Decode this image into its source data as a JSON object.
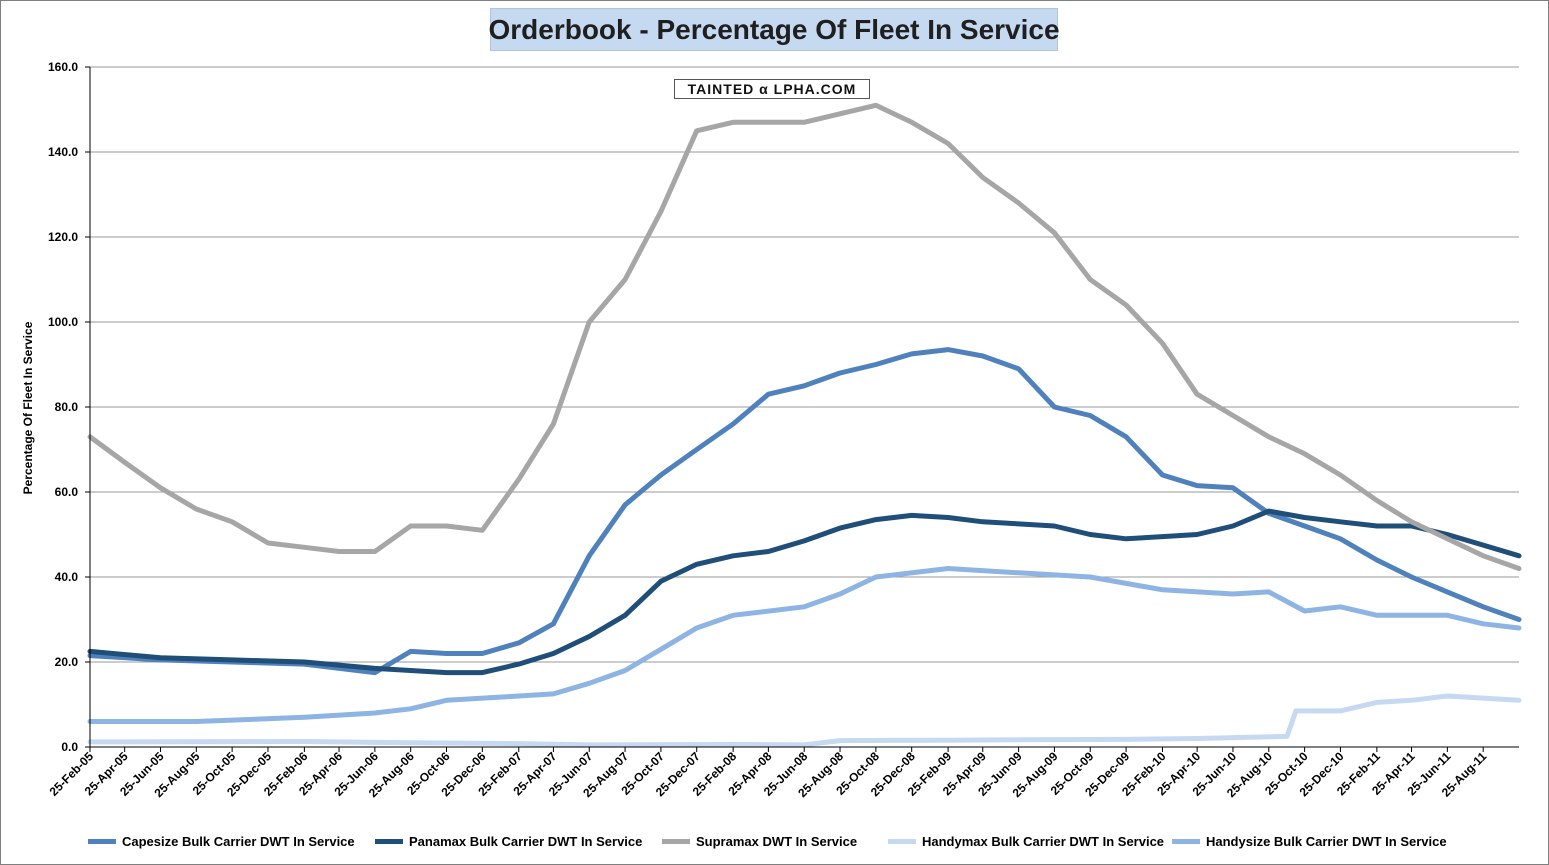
{
  "chart_data": {
    "type": "line",
    "title": "Orderbook - Percentage Of Fleet In Service",
    "ylabel": "Percentage Of Fleet In Service",
    "xlabel": "",
    "ylim": [
      0,
      160
    ],
    "y_ticks": [
      "0.0",
      "20.0",
      "40.0",
      "60.0",
      "80.0",
      "100.0",
      "120.0",
      "140.0",
      "160.0"
    ],
    "grid": true,
    "legend_position": "bottom",
    "x_start": "2005-02-25",
    "x_end": "2011-10-25",
    "x_ticks": [
      "25-Feb-05",
      "25-Apr-05",
      "25-Jun-05",
      "25-Aug-05",
      "25-Oct-05",
      "25-Dec-05",
      "25-Feb-06",
      "25-Apr-06",
      "25-Jun-06",
      "25-Aug-06",
      "25-Oct-06",
      "25-Dec-06",
      "25-Feb-07",
      "25-Apr-07",
      "25-Jun-07",
      "25-Aug-07",
      "25-Oct-07",
      "25-Dec-07",
      "25-Feb-08",
      "25-Apr-08",
      "25-Jun-08",
      "25-Aug-08",
      "25-Oct-08",
      "25-Dec-08",
      "25-Feb-09",
      "25-Apr-09",
      "25-Jun-09",
      "25-Aug-09",
      "25-Oct-09",
      "25-Dec-09",
      "25-Feb-10",
      "25-Apr-10",
      "25-Jun-10",
      "25-Aug-10",
      "25-Oct-10",
      "25-Dec-10",
      "25-Feb-11",
      "25-Apr-11",
      "25-Jun-11",
      "25-Aug-11"
    ],
    "series": [
      {
        "name": "Capesize Bulk Carrier DWT In Service",
        "color": "#4f81bd",
        "x": [
          "2005-02-25",
          "2005-06-25",
          "2005-10-25",
          "2006-02-25",
          "2006-06-25",
          "2006-08-25",
          "2006-10-25",
          "2006-12-25",
          "2007-02-25",
          "2007-04-25",
          "2007-06-25",
          "2007-08-25",
          "2007-10-25",
          "2007-12-25",
          "2008-02-25",
          "2008-04-25",
          "2008-06-25",
          "2008-08-25",
          "2008-10-25",
          "2008-12-25",
          "2009-02-25",
          "2009-04-25",
          "2009-06-25",
          "2009-08-25",
          "2009-10-25",
          "2009-12-25",
          "2010-02-25",
          "2010-04-25",
          "2010-06-25",
          "2010-08-25",
          "2010-10-25",
          "2010-12-25",
          "2011-02-25",
          "2011-04-25",
          "2011-06-25",
          "2011-08-25",
          "2011-10-25"
        ],
        "y": [
          21.5,
          20.5,
          20.0,
          19.5,
          17.5,
          22.5,
          22.0,
          22.0,
          24.5,
          29.0,
          45.0,
          57.0,
          64.0,
          70.0,
          76.0,
          83.0,
          85.0,
          88.0,
          90.0,
          92.5,
          93.5,
          92.0,
          89.0,
          80.0,
          78.0,
          73.0,
          64.0,
          61.5,
          61.0,
          55.0,
          52.0,
          49.0,
          44.0,
          40.0,
          36.5,
          33.0,
          30.0
        ]
      },
      {
        "name": "Panamax Bulk Carrier DWT In Service",
        "color": "#1f4e79",
        "x": [
          "2005-02-25",
          "2005-06-25",
          "2005-10-25",
          "2006-02-25",
          "2006-06-25",
          "2006-10-25",
          "2006-12-25",
          "2007-02-25",
          "2007-04-25",
          "2007-06-25",
          "2007-08-25",
          "2007-10-25",
          "2007-12-25",
          "2008-02-25",
          "2008-04-25",
          "2008-06-25",
          "2008-08-25",
          "2008-10-25",
          "2008-12-25",
          "2009-02-25",
          "2009-04-25",
          "2009-06-25",
          "2009-08-25",
          "2009-10-25",
          "2009-12-25",
          "2010-02-25",
          "2010-04-25",
          "2010-06-25",
          "2010-08-25",
          "2010-10-25",
          "2010-12-25",
          "2011-02-25",
          "2011-04-25",
          "2011-06-25",
          "2011-08-25",
          "2011-10-25"
        ],
        "y": [
          22.5,
          21.0,
          20.5,
          20.0,
          18.5,
          17.5,
          17.5,
          19.5,
          22.0,
          26.0,
          31.0,
          39.0,
          43.0,
          45.0,
          46.0,
          48.5,
          51.5,
          53.5,
          54.5,
          54.0,
          53.0,
          52.5,
          52.0,
          50.0,
          49.0,
          49.5,
          50.0,
          52.0,
          55.5,
          54.0,
          53.0,
          52.0,
          52.0,
          50.0,
          47.5,
          45.0
        ]
      },
      {
        "name": "Supramax DWT In Service",
        "color": "#a6a6a6",
        "x": [
          "2005-02-25",
          "2005-04-25",
          "2005-06-25",
          "2005-08-25",
          "2005-10-25",
          "2005-12-25",
          "2006-02-25",
          "2006-04-25",
          "2006-06-25",
          "2006-08-25",
          "2006-10-25",
          "2006-12-25",
          "2007-02-25",
          "2007-04-25",
          "2007-06-25",
          "2007-08-25",
          "2007-10-25",
          "2007-12-25",
          "2008-02-25",
          "2008-04-25",
          "2008-06-25",
          "2008-08-25",
          "2008-10-25",
          "2008-12-25",
          "2009-02-25",
          "2009-04-25",
          "2009-06-25",
          "2009-08-25",
          "2009-10-25",
          "2009-12-25",
          "2010-02-25",
          "2010-04-25",
          "2010-06-25",
          "2010-08-25",
          "2010-10-25",
          "2010-12-25",
          "2011-02-25",
          "2011-04-25",
          "2011-06-25",
          "2011-08-25",
          "2011-10-25"
        ],
        "y": [
          73.0,
          67.0,
          61.0,
          56.0,
          53.0,
          48.0,
          47.0,
          46.0,
          46.0,
          52.0,
          52.0,
          51.0,
          63.0,
          76.0,
          100.0,
          110.0,
          126.0,
          145.0,
          147.0,
          147.0,
          147.0,
          149.0,
          151.0,
          147.0,
          142.0,
          134.0,
          128.0,
          121.0,
          110.0,
          104.0,
          95.0,
          83.0,
          78.0,
          73.0,
          69.0,
          64.0,
          58.0,
          53.0,
          49.0,
          45.0,
          42.0
        ]
      },
      {
        "name": "Handymax Bulk Carrier DWT In Service",
        "color": "#c6d9f1",
        "x": [
          "2005-02-25",
          "2006-02-25",
          "2006-08-25",
          "2007-02-25",
          "2007-06-25",
          "2008-02-25",
          "2008-06-25",
          "2008-08-25",
          "2009-02-25",
          "2009-06-25",
          "2009-12-25",
          "2010-04-25",
          "2010-09-25",
          "2010-10-10",
          "2010-12-25",
          "2011-02-25",
          "2011-04-25",
          "2011-06-25",
          "2011-08-25",
          "2011-10-25"
        ],
        "y": [
          1.2,
          1.3,
          1.0,
          0.8,
          0.5,
          0.6,
          0.5,
          1.5,
          1.6,
          1.7,
          1.8,
          2.0,
          2.5,
          8.5,
          8.5,
          10.5,
          11.0,
          12.0,
          11.5,
          11.0
        ]
      },
      {
        "name": "Handysize Bulk Carrier DWT In Service",
        "color": "#8db4e2",
        "x": [
          "2005-02-25",
          "2005-08-25",
          "2006-02-25",
          "2006-06-25",
          "2006-08-25",
          "2006-10-25",
          "2007-02-25",
          "2007-04-25",
          "2007-06-25",
          "2007-08-25",
          "2007-10-25",
          "2007-12-25",
          "2008-02-25",
          "2008-06-25",
          "2008-08-25",
          "2008-10-25",
          "2009-02-25",
          "2009-06-25",
          "2009-10-25",
          "2010-02-25",
          "2010-06-25",
          "2010-08-25",
          "2010-10-25",
          "2010-12-25",
          "2011-02-25",
          "2011-06-25",
          "2011-08-25",
          "2011-10-25"
        ],
        "y": [
          6.0,
          6.0,
          7.0,
          8.0,
          9.0,
          11.0,
          12.0,
          12.5,
          15.0,
          18.0,
          23.0,
          28.0,
          31.0,
          33.0,
          36.0,
          40.0,
          42.0,
          41.0,
          40.0,
          37.0,
          36.0,
          36.5,
          32.0,
          33.0,
          31.0,
          31.0,
          29.0,
          28.0
        ]
      }
    ]
  }
}
